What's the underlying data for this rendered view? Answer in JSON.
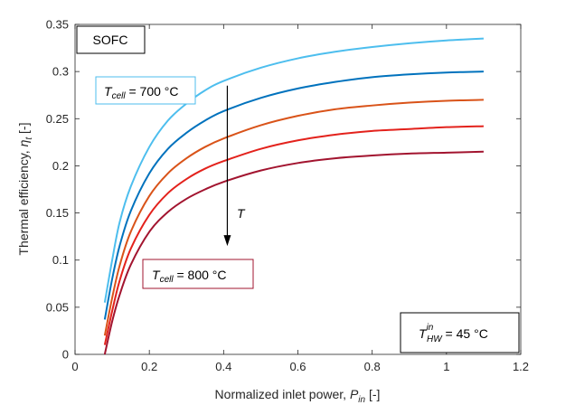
{
  "chart_data": {
    "type": "line",
    "xlabel": "Normalized inlet power, ",
    "xlabel_var": "P",
    "xlabel_sub": "in",
    "xlabel_unit": " [-]",
    "ylabel": "Thermal efficiency, ",
    "ylabel_var": "η",
    "ylabel_sub": "t",
    "ylabel_unit": " [-]",
    "xlim": [
      0,
      1.2
    ],
    "ylim": [
      0,
      0.35
    ],
    "xticks": [
      0,
      0.2,
      0.4,
      0.6,
      0.8,
      1,
      1.2
    ],
    "xtick_labels": [
      "0",
      "0.2",
      "0.4",
      "0.6",
      "0.8",
      "1",
      "1.2"
    ],
    "yticks": [
      0,
      0.05,
      0.1,
      0.15,
      0.2,
      0.25,
      0.3,
      0.35
    ],
    "ytick_labels": [
      "0",
      "0.05",
      "0.1",
      "0.15",
      "0.2",
      "0.25",
      "0.3",
      "0.35"
    ],
    "grid": false,
    "series": [
      {
        "color": "#4DBEEE",
        "x": [
          0.08,
          0.1,
          0.12,
          0.15,
          0.2,
          0.25,
          0.3,
          0.35,
          0.4,
          0.5,
          0.6,
          0.7,
          0.8,
          0.9,
          1.0,
          1.1
        ],
        "y": [
          0.055,
          0.1,
          0.14,
          0.178,
          0.22,
          0.248,
          0.266,
          0.28,
          0.29,
          0.304,
          0.314,
          0.321,
          0.326,
          0.33,
          0.333,
          0.335
        ]
      },
      {
        "color": "#0072BD",
        "x": [
          0.08,
          0.1,
          0.12,
          0.15,
          0.2,
          0.25,
          0.3,
          0.35,
          0.4,
          0.5,
          0.6,
          0.7,
          0.8,
          0.9,
          1.0,
          1.1
        ],
        "y": [
          0.037,
          0.08,
          0.115,
          0.152,
          0.192,
          0.218,
          0.235,
          0.248,
          0.258,
          0.272,
          0.282,
          0.289,
          0.294,
          0.297,
          0.299,
          0.3
        ]
      },
      {
        "color": "#D95319",
        "x": [
          0.08,
          0.1,
          0.12,
          0.15,
          0.2,
          0.25,
          0.3,
          0.35,
          0.4,
          0.5,
          0.6,
          0.7,
          0.8,
          0.9,
          1.0,
          1.1
        ],
        "y": [
          0.02,
          0.06,
          0.094,
          0.13,
          0.168,
          0.192,
          0.208,
          0.22,
          0.229,
          0.243,
          0.253,
          0.26,
          0.264,
          0.267,
          0.269,
          0.27
        ]
      },
      {
        "color": "#E3221C",
        "x": [
          0.08,
          0.1,
          0.12,
          0.15,
          0.2,
          0.25,
          0.3,
          0.35,
          0.4,
          0.5,
          0.6,
          0.7,
          0.8,
          0.9,
          1.0,
          1.1
        ],
        "y": [
          0.01,
          0.046,
          0.078,
          0.112,
          0.148,
          0.171,
          0.186,
          0.197,
          0.205,
          0.218,
          0.227,
          0.233,
          0.237,
          0.239,
          0.241,
          0.242
        ]
      },
      {
        "color": "#A2142F",
        "x": [
          0.08,
          0.1,
          0.12,
          0.15,
          0.2,
          0.25,
          0.3,
          0.35,
          0.4,
          0.5,
          0.6,
          0.7,
          0.8,
          0.9,
          1.0,
          1.1
        ],
        "y": [
          0.0,
          0.035,
          0.063,
          0.095,
          0.13,
          0.151,
          0.165,
          0.175,
          0.183,
          0.195,
          0.203,
          0.208,
          0.211,
          0.213,
          0.214,
          0.215
        ]
      }
    ],
    "annotations": {
      "sofc_label": "SOFC",
      "t700_var": "T",
      "t700_sub": "cell",
      "t700_value": " = 700 °C",
      "t800_var": "T",
      "t800_sub": "cell",
      "t800_value": " = 800 °C",
      "arrow_label": "T",
      "thw_var": "T",
      "thw_sub": "HW",
      "thw_sup": "in",
      "thw_value": " = 45 °C"
    },
    "arrow": {
      "x": 0.41,
      "y_start": 0.285,
      "y_end": 0.115
    },
    "colors": {
      "box_700": "#4DBEEE",
      "box_800": "#A2142F"
    }
  }
}
